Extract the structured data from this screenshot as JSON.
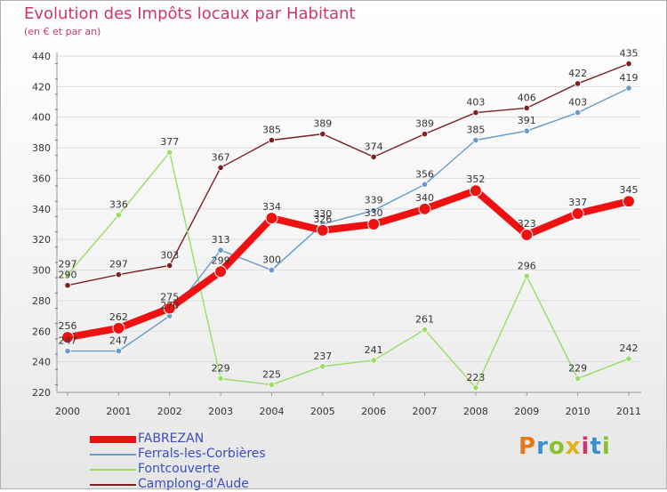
{
  "header": {
    "title": "Evolution des Impôts locaux par Habitant",
    "subtitle": "(en € et par an)"
  },
  "logo": {
    "text": "Proxiti"
  },
  "chart_data": {
    "type": "line",
    "title": "Evolution des Impôts locaux par Habitant",
    "subtitle": "(en € et par an)",
    "xlabel": "",
    "ylabel": "",
    "x": [
      2000,
      2001,
      2002,
      2003,
      2004,
      2005,
      2006,
      2007,
      2008,
      2009,
      2010,
      2011
    ],
    "ylim": [
      220,
      440
    ],
    "yticks": [
      220,
      240,
      260,
      280,
      300,
      320,
      340,
      360,
      380,
      400,
      420,
      440
    ],
    "grid": "horizontal",
    "legend_position": "bottom-left",
    "series": [
      {
        "name": "Camplong-d'Aude",
        "color": "#7a2020",
        "values": [
          290,
          297,
          303,
          367,
          385,
          389,
          374,
          389,
          403,
          406,
          422,
          435
        ]
      },
      {
        "name": "Fontcouverte",
        "color": "#99dd66",
        "values": [
          297,
          336,
          377,
          229,
          225,
          237,
          241,
          261,
          223,
          296,
          229,
          242
        ]
      },
      {
        "name": "Ferrals-les-Corbières",
        "color": "#6699cc",
        "values": [
          247,
          247,
          270,
          313,
          300,
          330,
          339,
          356,
          385,
          391,
          403,
          419
        ]
      },
      {
        "name": "FABREZAN",
        "color": "#ee1111",
        "values": [
          256,
          262,
          275,
          299,
          334,
          326,
          330,
          340,
          352,
          323,
          337,
          345
        ]
      }
    ],
    "legend": [
      "FABREZAN",
      "Ferrals-les-Corbières",
      "Fontcouverte",
      "Camplong-d'Aude"
    ]
  }
}
